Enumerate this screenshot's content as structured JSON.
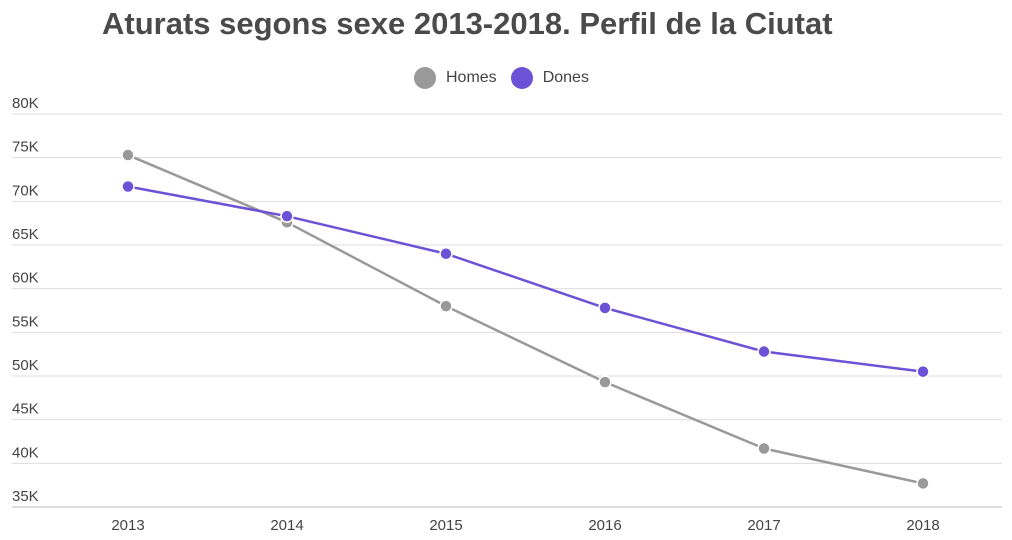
{
  "chart_data": {
    "type": "line",
    "title": "Aturats segons sexe 2013-2018. Perfil de la Ciutat",
    "xlabel": "",
    "ylabel": "",
    "categories": [
      "2013",
      "2014",
      "2015",
      "2016",
      "2017",
      "2018"
    ],
    "series": [
      {
        "name": "Homes",
        "color": "#999999",
        "values": [
          75300,
          67600,
          58000,
          49300,
          41700,
          37700
        ]
      },
      {
        "name": "Dones",
        "color": "#6c52d6",
        "values": [
          71700,
          68300,
          64000,
          57800,
          52800,
          50500
        ]
      }
    ],
    "ylim": [
      35000,
      80000
    ],
    "yticks": [
      {
        "value": 80000,
        "label": "80K"
      },
      {
        "value": 75000,
        "label": "75K"
      },
      {
        "value": 70000,
        "label": "70K"
      },
      {
        "value": 65000,
        "label": "65K"
      },
      {
        "value": 60000,
        "label": "60K"
      },
      {
        "value": 55000,
        "label": "55K"
      },
      {
        "value": 50000,
        "label": "50K"
      },
      {
        "value": 45000,
        "label": "45K"
      },
      {
        "value": 40000,
        "label": "40K"
      },
      {
        "value": 35000,
        "label": "35K"
      }
    ],
    "grid": true,
    "legend_position": "top-center"
  }
}
